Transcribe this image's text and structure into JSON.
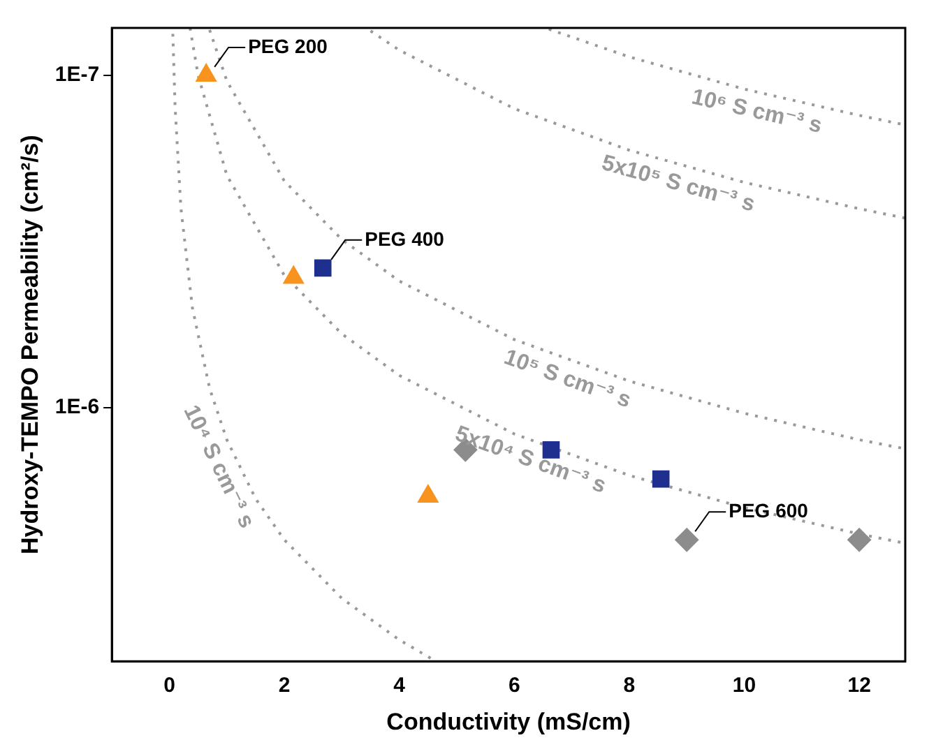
{
  "chart_data": {
    "type": "scatter",
    "xlabel": "Conductivity (mS/cm)",
    "ylabel": "Hydroxy-TEMPO Permeability (cm²/s)",
    "xlim": [
      -1,
      12.8
    ],
    "xticks": [
      0,
      2,
      4,
      6,
      8,
      10,
      12
    ],
    "ylim": [
      5.8e-06,
      7.2e-08
    ],
    "yticks": [
      {
        "value": 1e-07,
        "label": "1E-7"
      },
      {
        "value": 1e-06,
        "label": "1E-6"
      }
    ],
    "log": "y",
    "grid": false,
    "legend": false,
    "series": [
      {
        "type": "line",
        "name": "10⁴ S cm⁻³ s",
        "color": "#999999",
        "line_style": "dotted",
        "marker": "none",
        "x": [
          0.06,
          0.1,
          0.2,
          0.4,
          0.7,
          1,
          1.5,
          2,
          3,
          4,
          4.6
        ],
        "values": [
          7.5e-08,
          1.25e-07,
          2.5e-07,
          5e-07,
          8.75e-07,
          1.25e-06,
          1.88e-06,
          2.5e-06,
          3.75e-06,
          5e-06,
          5.75e-06
        ]
      },
      {
        "type": "line",
        "name": "5x10⁴ S cm⁻³ s",
        "color": "#999999",
        "line_style": "dotted",
        "marker": "none",
        "x": [
          0.36,
          0.5,
          1,
          2,
          3,
          4,
          6,
          8,
          10,
          12,
          12.8
        ],
        "values": [
          7.2e-08,
          1e-07,
          2e-07,
          4e-07,
          6e-07,
          8e-07,
          1.2e-06,
          1.6e-06,
          2e-06,
          2.4e-06,
          2.56e-06
        ]
      },
      {
        "type": "line",
        "name": "10⁵ S cm⁻³ s",
        "color": "#999999",
        "line_style": "dotted",
        "marker": "none",
        "x": [
          0.7,
          1,
          2,
          3,
          4,
          6,
          8,
          10,
          12,
          12.8
        ],
        "values": [
          7.3e-08,
          1.04e-07,
          2.08e-07,
          3.12e-07,
          4.16e-07,
          6.24e-07,
          8.32e-07,
          1.04e-06,
          1.25e-06,
          1.33e-06
        ]
      },
      {
        "type": "line",
        "name": "5x10⁵ S cm⁻³ s",
        "color": "#999999",
        "line_style": "dotted",
        "marker": "none",
        "x": [
          3.5,
          4,
          6,
          8,
          10,
          12,
          12.8
        ],
        "values": [
          7.35e-08,
          8.4e-08,
          1.26e-07,
          1.68e-07,
          2.1e-07,
          2.52e-07,
          2.69e-07
        ]
      },
      {
        "type": "line",
        "name": "10⁶ S cm⁻³ s",
        "color": "#999999",
        "line_style": "dotted",
        "marker": "none",
        "x": [
          6.6,
          8,
          10,
          12,
          12.8
        ],
        "values": [
          7.26e-08,
          8.8e-08,
          1.1e-07,
          1.32e-07,
          1.41e-07
        ]
      },
      {
        "type": "scatter",
        "color": "#f7931e",
        "marker": "triangle",
        "x": [
          0.64,
          2.16,
          4.5
        ],
        "values": [
          1e-07,
          4.06e-07,
          1.85e-06
        ]
      },
      {
        "type": "scatter",
        "color": "#1f2f8f",
        "marker": "square",
        "x": [
          2.67,
          6.64,
          8.55
        ],
        "values": [
          3.8e-07,
          1.34e-06,
          1.64e-06
        ]
      },
      {
        "type": "scatter",
        "color": "#8c8c8c",
        "marker": "diamond",
        "x": [
          5.15,
          9.0,
          12
        ],
        "values": [
          1.34e-06,
          2.5e-06,
          2.5e-06
        ]
      }
    ],
    "annotations": [
      {
        "text": "PEG 200",
        "x": 0.64,
        "y": 1e-07
      },
      {
        "text": "PEG 400",
        "x": 2.67,
        "y": 3.8e-07
      },
      {
        "text": "PEG 600",
        "x": 9.0,
        "y": 2.5e-06
      }
    ]
  }
}
